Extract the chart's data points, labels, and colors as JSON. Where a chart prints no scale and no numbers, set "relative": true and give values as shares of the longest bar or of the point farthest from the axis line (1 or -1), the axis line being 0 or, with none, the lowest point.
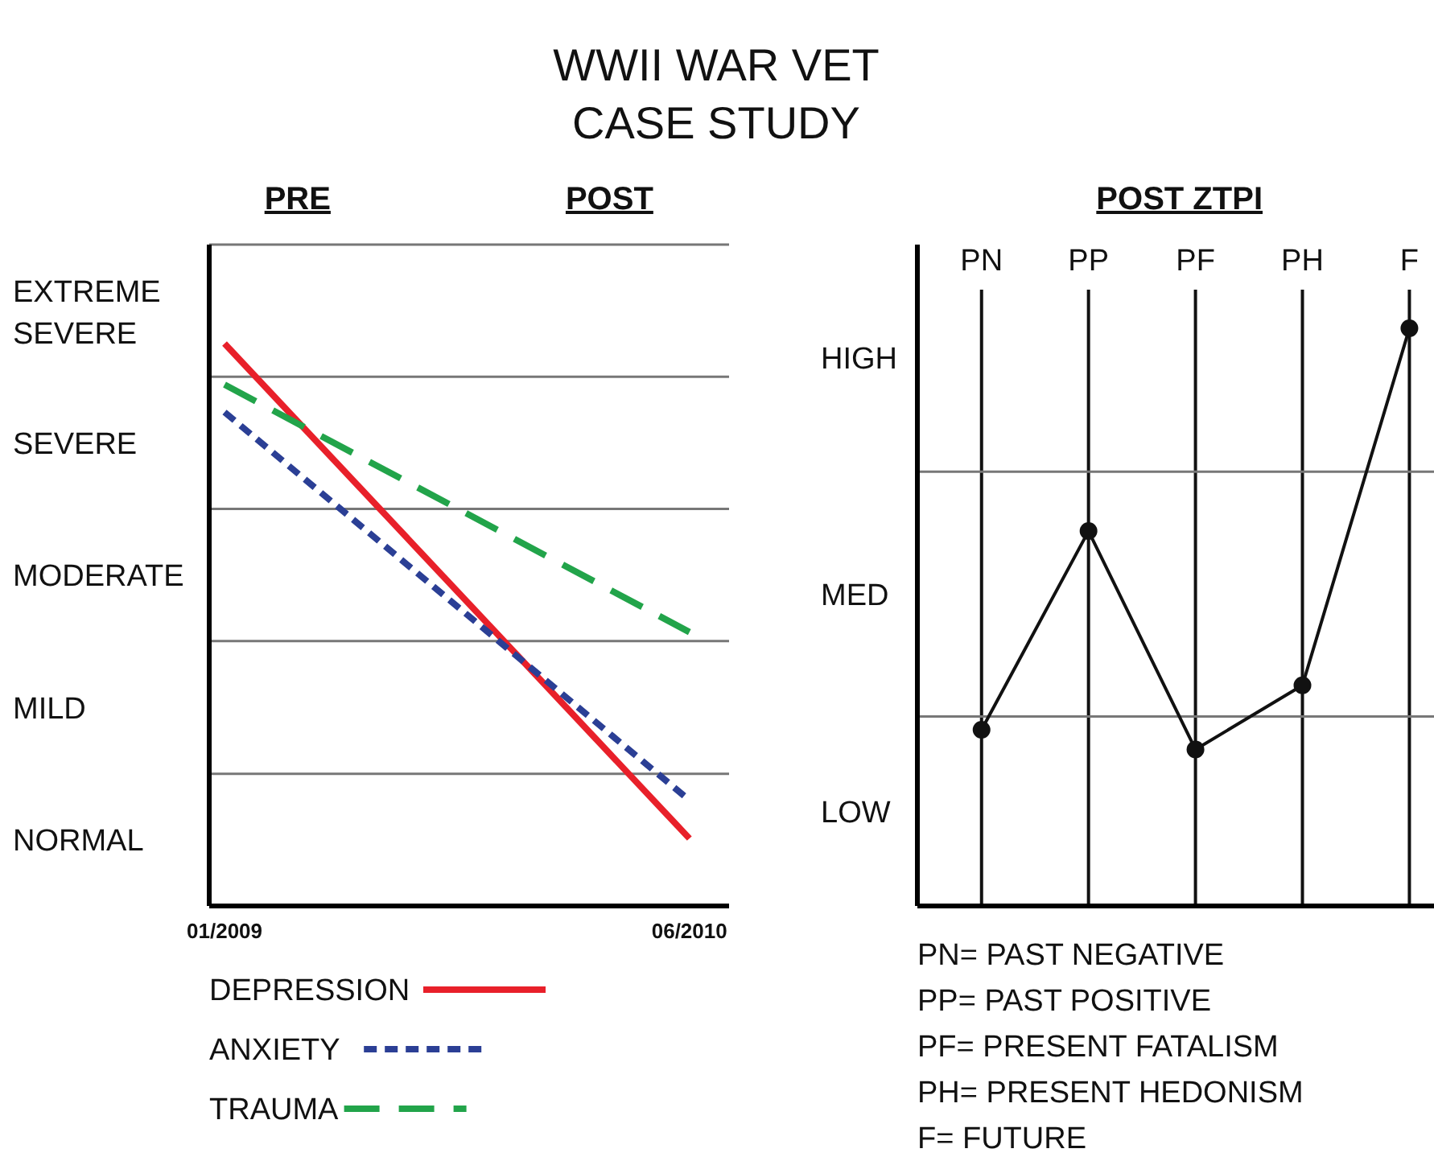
{
  "chart_data": [
    {
      "type": "line",
      "relative": true,
      "title": "WWII WAR VET\nCASE STUDY",
      "x": [
        "2009-01",
        "2010-06"
      ],
      "xlim": [
        "2008-12-15",
        "2010-07-15"
      ],
      "xticks": [
        {
          "value": "2009-01",
          "label": "01/2009"
        },
        {
          "value": "2010-06",
          "label": "06/2010"
        }
      ],
      "ref_lines": [
        {
          "axis": "y",
          "value": 0.235,
          "color": "#777777"
        },
        {
          "axis": "y",
          "value": 0.471,
          "color": "#777777"
        },
        {
          "axis": "y",
          "value": 0.706,
          "color": "#777777"
        },
        {
          "axis": "y",
          "value": 0.941,
          "color": "#777777"
        },
        {
          "axis": "y",
          "value": 1.176,
          "color": "#777777"
        }
      ],
      "annotations": [
        "PRE",
        "POST",
        "NORMAL",
        "MILD",
        "MODERATE",
        "SEVERE",
        "EXTREME SEVERE"
      ],
      "legend": "bottom left",
      "marker": "none",
      "series": [
        {
          "name": "DEPRESSION",
          "color": "#e8202a",
          "line_style": "solid",
          "values": [
            1,
            0.12
          ]
        },
        {
          "name": "ANXIETY",
          "color": "#2b3f95",
          "line_style": "dotted",
          "values": [
            0.878,
            0.188
          ]
        },
        {
          "name": "TRAUMA",
          "color": "#22a44a",
          "line_style": "dashed",
          "values": [
            0.927,
            0.487
          ]
        }
      ]
    },
    {
      "type": "line",
      "relative": true,
      "title": "POST ZTPI",
      "categories": [
        "PN",
        "PP",
        "PF",
        "PH",
        "F"
      ],
      "ref_lines": [
        {
          "axis": "y",
          "value": 0.328,
          "color": "#777777"
        },
        {
          "axis": "y",
          "value": 0.752,
          "color": "#777777"
        }
      ],
      "grid": "x",
      "legend": false,
      "marker": "circle",
      "line_style": "solid",
      "series": [
        {
          "color": "#111111",
          "values": [
            0.305,
            0.649,
            0.271,
            0.382,
            1
          ]
        }
      ],
      "annotations": [
        "LOW",
        "MED",
        "HIGH",
        "PN= PAST NEGATIVE",
        "PP= PAST POSITIVE",
        "PF= PRESENT FATALISM",
        "PH= PRESENT HEDONISM",
        "F= FUTURE"
      ]
    }
  ]
}
